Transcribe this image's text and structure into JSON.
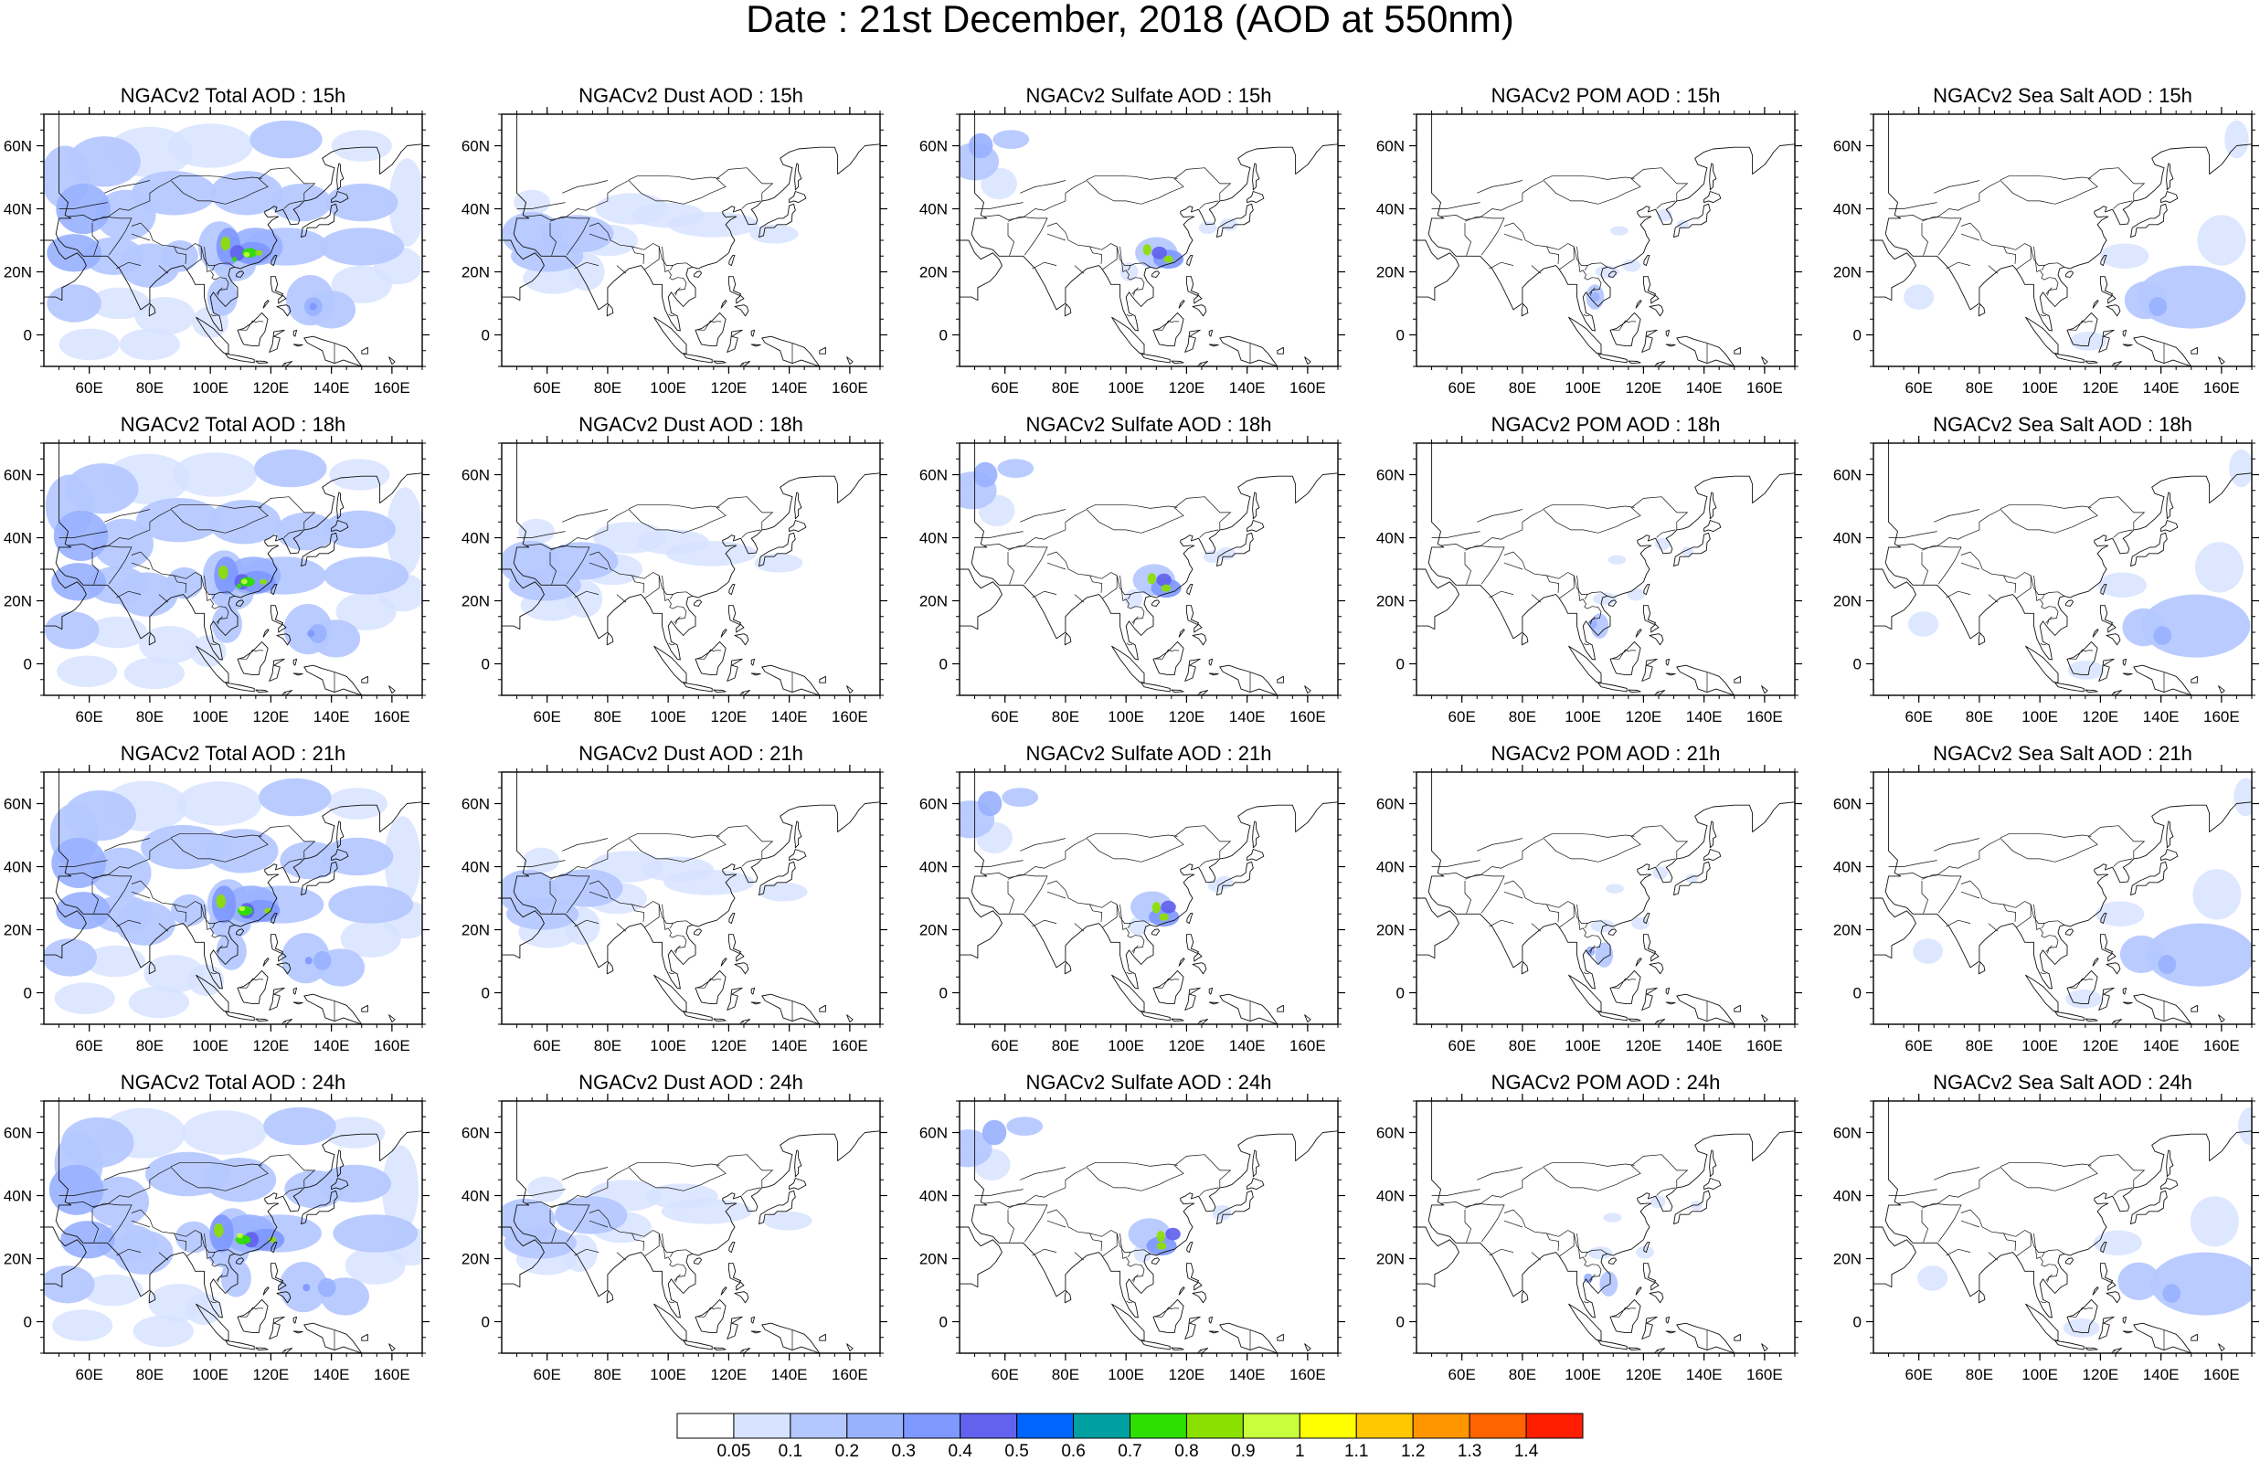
{
  "title": "Date : 21st December, 2018 (AOD at 550nm)",
  "panels": [
    [
      "NGACv2 Total AOD : 15h",
      "NGACv2 Dust AOD : 15h",
      "NGACv2 Sulfate AOD : 15h",
      "NGACv2 POM AOD : 15h",
      "NGACv2 Sea Salt AOD : 15h"
    ],
    [
      "NGACv2 Total AOD : 18h",
      "NGACv2 Dust AOD : 18h",
      "NGACv2 Sulfate AOD : 18h",
      "NGACv2 POM AOD : 18h",
      "NGACv2 Sea Salt AOD : 18h"
    ],
    [
      "NGACv2 Total AOD : 21h",
      "NGACv2 Dust AOD : 21h",
      "NGACv2 Sulfate AOD : 21h",
      "NGACv2 POM AOD : 21h",
      "NGACv2 Sea Salt AOD : 21h"
    ],
    [
      "NGACv2 Total AOD : 24h",
      "NGACv2 Dust AOD : 24h",
      "NGACv2 Sulfate AOD : 24h",
      "NGACv2 POM AOD : 24h",
      "NGACv2 Sea Salt  AOD : 24h"
    ]
  ],
  "lat_ticks": [
    "60N",
    "40N",
    "20N",
    "0"
  ],
  "lon_ticks": [
    "60E",
    "80E",
    "100E",
    "120E",
    "140E",
    "160E"
  ],
  "colorbar": {
    "labels": [
      "0.05",
      "0.1",
      "0.2",
      "0.3",
      "0.4",
      "0.5",
      "0.6",
      "0.7",
      "0.8",
      "0.9",
      "1",
      "1.1",
      "1.2",
      "1.3",
      "1.4"
    ],
    "colors": [
      "#ffffff",
      "#d7e3ff",
      "#b4c8ff",
      "#99b2ff",
      "#7f98ff",
      "#6262ee",
      "#0066ff",
      "#00a0a0",
      "#2ee000",
      "#8ce000",
      "#c8ff3c",
      "#ffff00",
      "#ffc800",
      "#ff9600",
      "#ff6400",
      "#ff1e00"
    ]
  }
}
